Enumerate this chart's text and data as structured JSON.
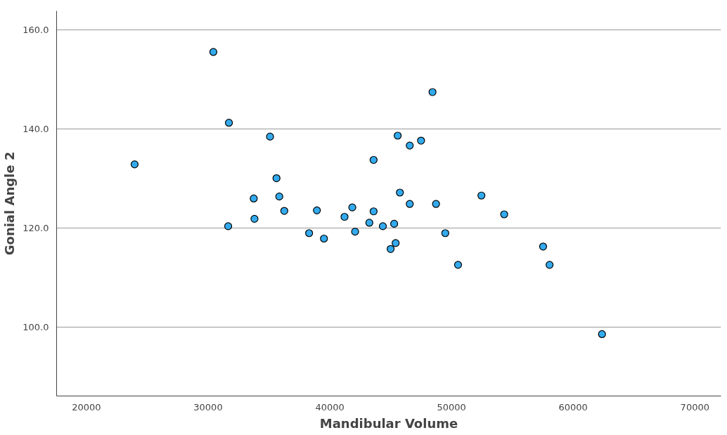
{
  "chart_data": {
    "type": "scatter",
    "xlabel": "Mandibular Volume",
    "ylabel": "Gonial Angle 2",
    "x": [
      23960,
      30430,
      31710,
      31650,
      33750,
      33810,
      35090,
      35620,
      35850,
      36260,
      38300,
      38940,
      39520,
      41210,
      41850,
      42080,
      43250,
      43600,
      43600,
      44360,
      45000,
      45290,
      45410,
      45580,
      45760,
      46570,
      46570,
      47500,
      48440,
      48730,
      49490,
      50540,
      52460,
      54330,
      57530,
      58060,
      62370
    ],
    "series": [
      {
        "color": "#33aaee",
        "values": [
          132.9,
          155.6,
          141.3,
          120.4,
          126.0,
          121.9,
          138.5,
          130.1,
          126.4,
          123.5,
          119.0,
          123.6,
          117.9,
          122.3,
          124.2,
          119.3,
          121.1,
          133.8,
          123.4,
          120.4,
          115.8,
          120.9,
          117.0,
          138.7,
          127.2,
          136.7,
          124.9,
          137.7,
          147.5,
          124.9,
          119.0,
          112.6,
          126.6,
          122.8,
          116.3,
          112.6,
          98.6
        ]
      }
    ],
    "xlim": [
      17550,
      72150
    ],
    "ylim": [
      86.1,
      163.9
    ],
    "xticks": [
      20000,
      30000,
      40000,
      50000,
      60000,
      70000
    ],
    "yticks": [
      {
        "value": 100,
        "label": "100.0"
      },
      {
        "value": 120,
        "label": "120.0"
      },
      {
        "value": 140,
        "label": "140.0"
      },
      {
        "value": 160,
        "label": "160.0"
      }
    ],
    "grid": "y",
    "marker": "circle"
  }
}
